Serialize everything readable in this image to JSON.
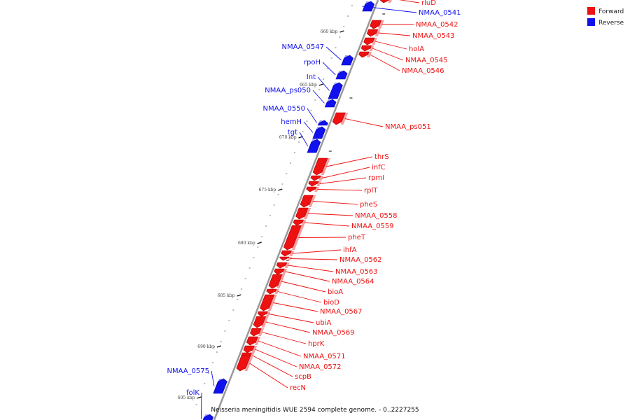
{
  "caption": "Neisseria meningitidis WUE 2594 complete genome. - 0..2227255",
  "colors": {
    "forward": "#ee1111",
    "reverse": "#1111ee",
    "backbone": "#999999"
  },
  "legend": [
    {
      "label": "Forward",
      "strand": "forward"
    },
    {
      "label": "Reverse",
      "strand": "reverse"
    }
  ],
  "scale": {
    "unit": "kbp",
    "start_kbp": 656,
    "end_kbp": 697,
    "labels": [
      "660 kbp",
      "665 kbp",
      "670 kbp",
      "675 kbp",
      "680 kbp",
      "685 kbp",
      "690 kbp",
      "695 kbp"
    ]
  },
  "genes": [
    {
      "name": "rluD",
      "strand": "forward"
    },
    {
      "name": "NMAA_0541",
      "strand": "reverse"
    },
    {
      "name": "NMAA_0542",
      "strand": "forward"
    },
    {
      "name": "NMAA_0543",
      "strand": "forward"
    },
    {
      "name": "holA",
      "strand": "forward"
    },
    {
      "name": "NMAA_0545",
      "strand": "forward"
    },
    {
      "name": "NMAA_0546",
      "strand": "forward"
    },
    {
      "name": "NMAA_0547",
      "strand": "reverse"
    },
    {
      "name": "rpoH",
      "strand": "reverse"
    },
    {
      "name": "Int",
      "strand": "reverse"
    },
    {
      "name": "NMAA_ps050",
      "strand": "reverse"
    },
    {
      "name": "NMAA_0550",
      "strand": "reverse"
    },
    {
      "name": "NMAA_ps051",
      "strand": "forward"
    },
    {
      "name": "hemH",
      "strand": "reverse"
    },
    {
      "name": "tgt",
      "strand": "reverse"
    },
    {
      "name": "thrS",
      "strand": "forward"
    },
    {
      "name": "infC",
      "strand": "forward"
    },
    {
      "name": "rpmI",
      "strand": "forward"
    },
    {
      "name": "rplT",
      "strand": "forward"
    },
    {
      "name": "pheS",
      "strand": "forward"
    },
    {
      "name": "NMAA_0558",
      "strand": "forward"
    },
    {
      "name": "NMAA_0559",
      "strand": "forward"
    },
    {
      "name": "pheT",
      "strand": "forward"
    },
    {
      "name": "ihfA",
      "strand": "forward"
    },
    {
      "name": "NMAA_0562",
      "strand": "forward"
    },
    {
      "name": "NMAA_0563",
      "strand": "forward"
    },
    {
      "name": "NMAA_0564",
      "strand": "forward"
    },
    {
      "name": "bioA",
      "strand": "forward"
    },
    {
      "name": "bioD",
      "strand": "forward"
    },
    {
      "name": "NMAA_0567",
      "strand": "forward"
    },
    {
      "name": "ubiA",
      "strand": "forward"
    },
    {
      "name": "NMAA_0569",
      "strand": "forward"
    },
    {
      "name": "hprK",
      "strand": "forward"
    },
    {
      "name": "NMAA_0571",
      "strand": "forward"
    },
    {
      "name": "NMAA_0572",
      "strand": "forward"
    },
    {
      "name": "scpB",
      "strand": "forward"
    },
    {
      "name": "recN",
      "strand": "forward"
    },
    {
      "name": "NMAA_0575",
      "strand": "reverse"
    },
    {
      "name": "folK",
      "strand": "reverse"
    }
  ]
}
